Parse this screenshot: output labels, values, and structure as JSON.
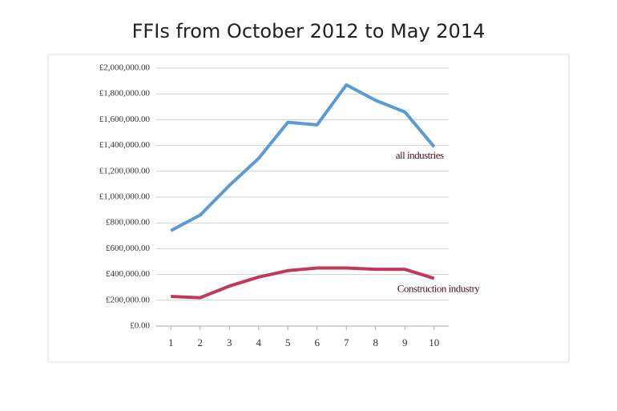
{
  "chart_data": {
    "type": "line",
    "title": "FFIs from October 2012 to May 2014",
    "x": [
      1,
      2,
      3,
      4,
      5,
      6,
      7,
      8,
      9,
      10
    ],
    "xlim": [
      0.5,
      10.5
    ],
    "xticks": [
      1,
      2,
      3,
      4,
      5,
      6,
      7,
      8,
      9,
      10
    ],
    "ylim": [
      0,
      2000000
    ],
    "yticks": [
      {
        "value": 0,
        "label": "£0.00"
      },
      {
        "value": 200000,
        "label": "£200,000.00"
      },
      {
        "value": 400000,
        "label": "£400,000.00"
      },
      {
        "value": 600000,
        "label": "£600,000.00"
      },
      {
        "value": 800000,
        "label": "£800,000.00"
      },
      {
        "value": 1000000,
        "label": "£1,000,000.00"
      },
      {
        "value": 1200000,
        "label": "£1,200,000.00"
      },
      {
        "value": 1400000,
        "label": "£1,400,000.00"
      },
      {
        "value": 1600000,
        "label": "£1,600,000.00"
      },
      {
        "value": 1800000,
        "label": "£1,800,000.00"
      },
      {
        "value": 2000000,
        "label": "£2,000,000.00"
      }
    ],
    "grid": true,
    "series": [
      {
        "name": "all industries",
        "color": "#5b9bd5",
        "values": [
          740000,
          860000,
          1090000,
          1300000,
          1580000,
          1560000,
          1870000,
          1750000,
          1660000,
          1390000
        ]
      },
      {
        "name": "Construction industry",
        "color": "#c0395a",
        "values": [
          230000,
          220000,
          310000,
          380000,
          430000,
          450000,
          450000,
          440000,
          440000,
          370000
        ]
      }
    ]
  }
}
